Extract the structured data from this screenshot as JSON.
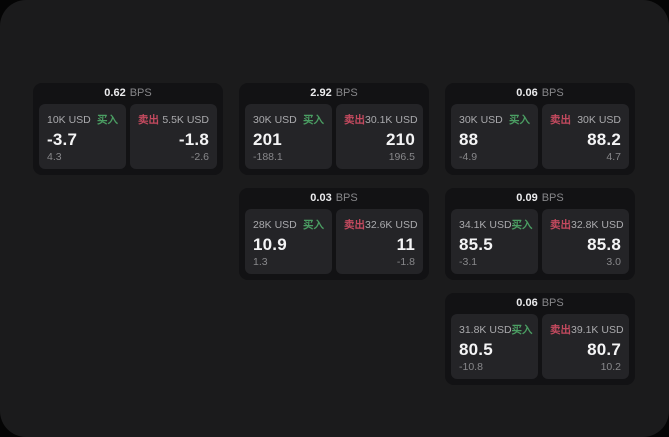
{
  "labels": {
    "buy": "买入",
    "sell": "卖出",
    "bps_unit": "BPS"
  },
  "colors": {
    "buy_green": "#4b9e63",
    "sell_red": "#c44a5f",
    "surface": "#1b1b1c",
    "card": "#121214",
    "panel": "#242427"
  },
  "cards": [
    {
      "bps": "0.62",
      "row": 1,
      "col": 1,
      "buy": {
        "amount": "10K USD",
        "price": "-3.7",
        "change": "4.3"
      },
      "sell": {
        "amount": "5.5K USD",
        "price": "-1.8",
        "change": "-2.6"
      }
    },
    {
      "bps": "2.92",
      "row": 1,
      "col": 2,
      "buy": {
        "amount": "30K USD",
        "price": "201",
        "change": "-188.1"
      },
      "sell": {
        "amount": "30.1K USD",
        "price": "210",
        "change": "196.5"
      }
    },
    {
      "bps": "0.06",
      "row": 1,
      "col": 3,
      "buy": {
        "amount": "30K USD",
        "price": "88",
        "change": "-4.9"
      },
      "sell": {
        "amount": "30K USD",
        "price": "88.2",
        "change": "4.7"
      }
    },
    {
      "bps": "0.03",
      "row": 2,
      "col": 2,
      "buy": {
        "amount": "28K USD",
        "price": "10.9",
        "change": "1.3"
      },
      "sell": {
        "amount": "32.6K USD",
        "price": "11",
        "change": "-1.8"
      }
    },
    {
      "bps": "0.09",
      "row": 2,
      "col": 3,
      "buy": {
        "amount": "34.1K USD",
        "price": "85.5",
        "change": "-3.1"
      },
      "sell": {
        "amount": "32.8K USD",
        "price": "85.8",
        "change": "3.0"
      }
    },
    {
      "bps": "0.06",
      "row": 3,
      "col": 3,
      "buy": {
        "amount": "31.8K USD",
        "price": "80.5",
        "change": "-10.8"
      },
      "sell": {
        "amount": "39.1K USD",
        "price": "80.7",
        "change": "10.2"
      }
    }
  ]
}
